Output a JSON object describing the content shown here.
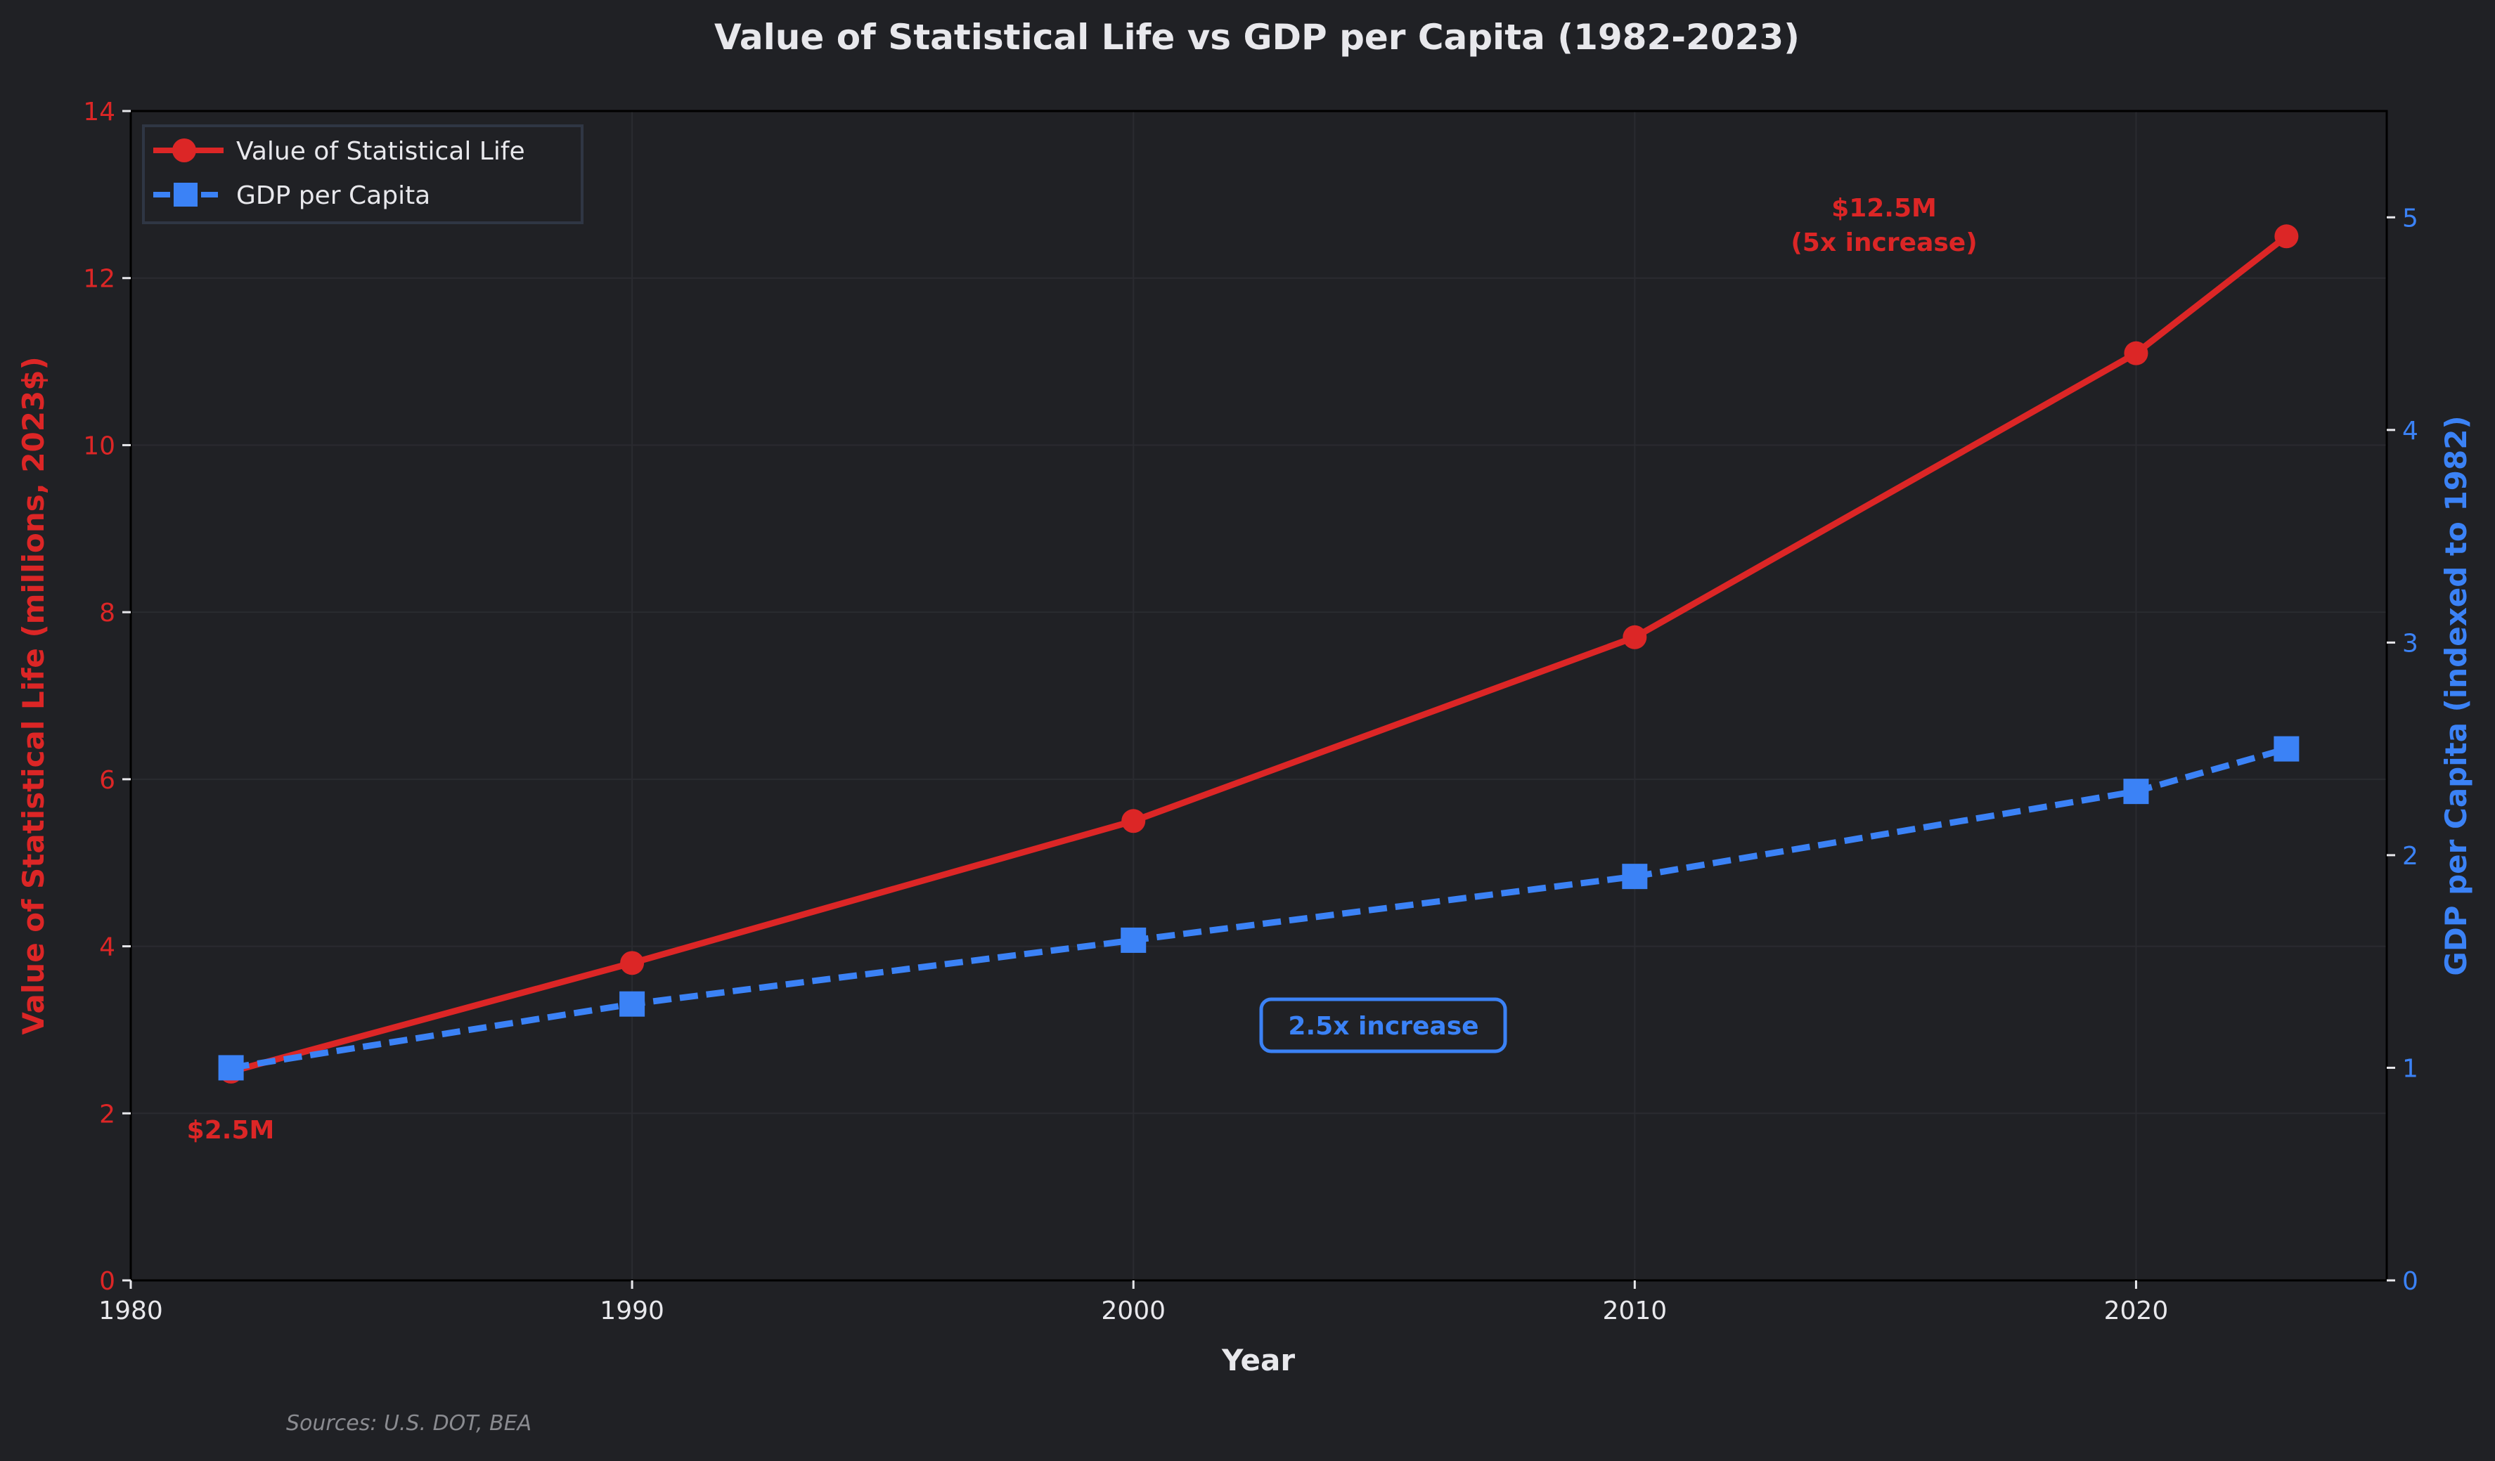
{
  "colors": {
    "background": "#202125",
    "vsl": "#dc2626",
    "gdp": "#3b82f6",
    "text": "#e8e8ec",
    "grid": "#2b2c31"
  },
  "chart_data": {
    "type": "line",
    "title": "Value of Statistical Life vs GDP per Capita (1982-2023)",
    "xlabel": "Year",
    "ylabel_left": "Value of Statistical Life (millions, 2023$)",
    "ylabel_right": "GDP per Capita (indexed to 1982)",
    "xlim": [
      1980,
      2025
    ],
    "ylim_left": [
      0,
      14
    ],
    "ylim_right": [
      0,
      5.5
    ],
    "x_ticks": [
      1980,
      1990,
      2000,
      2010,
      2020
    ],
    "y_ticks_left": [
      0,
      2,
      4,
      6,
      8,
      10,
      12,
      14
    ],
    "y_ticks_right": [
      0,
      1,
      2,
      3,
      4,
      5
    ],
    "grid": true,
    "legend_placement": "top-left",
    "x": [
      1982,
      1990,
      2000,
      2010,
      2020,
      2023
    ],
    "series": [
      {
        "name": "Value of Statistical Life",
        "axis": "left",
        "values": [
          2.5,
          3.8,
          5.5,
          7.7,
          11.1,
          12.5
        ],
        "color": "#dc2626",
        "marker": "circle",
        "line": "solid"
      },
      {
        "name": "GDP per Capita",
        "axis": "right",
        "values": [
          1.0,
          1.3,
          1.6,
          1.9,
          2.3,
          2.5
        ],
        "color": "#3b82f6",
        "marker": "square",
        "line": "dashed"
      }
    ],
    "annotations": [
      {
        "text": "$2.5M",
        "color": "#dc2626"
      },
      {
        "text": "$12.5M",
        "text2": "(5x increase)",
        "color": "#dc2626"
      },
      {
        "text": "2.5x increase",
        "color": "#3b82f6",
        "boxed": true
      }
    ],
    "source": "Sources: U.S. DOT, BEA"
  }
}
